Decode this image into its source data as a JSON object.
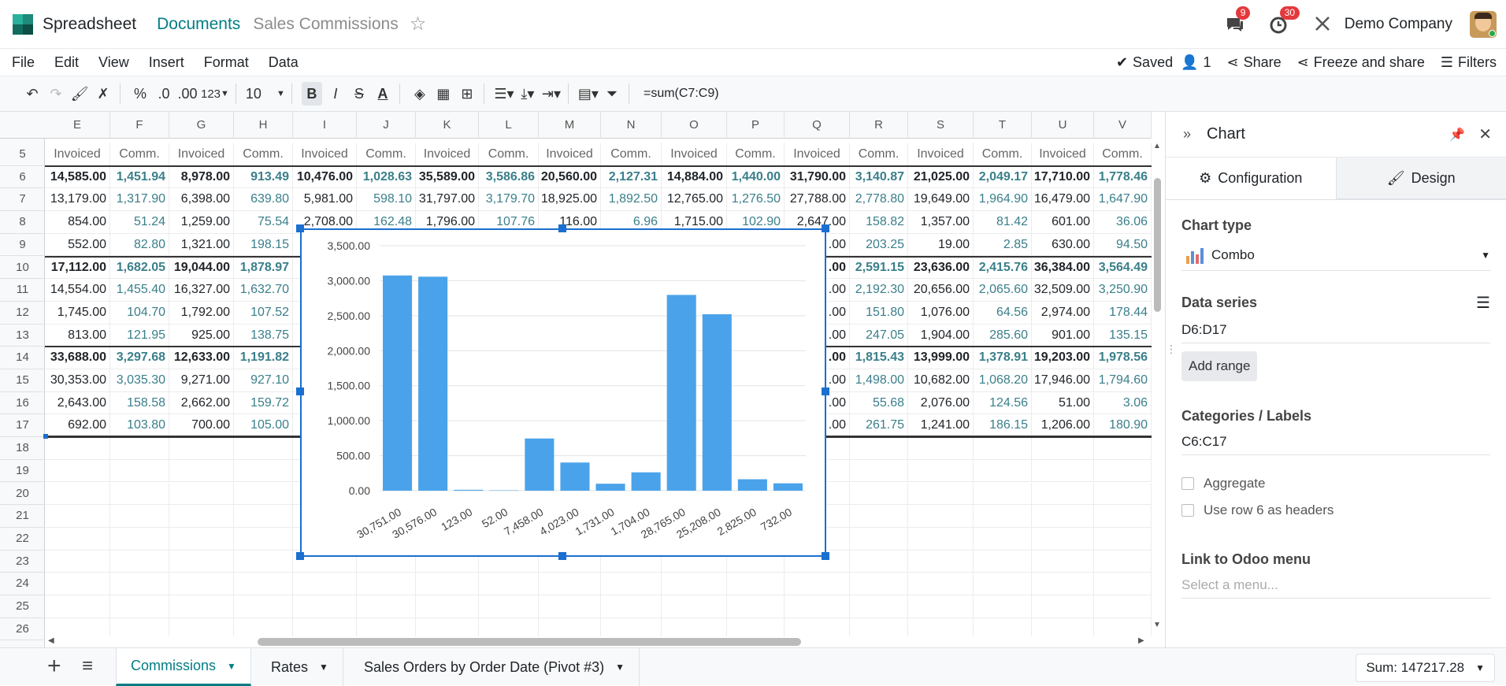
{
  "app": {
    "name": "Spreadsheet",
    "breadcrumb_link": "Documents",
    "breadcrumb_current": "Sales Commissions",
    "company": "Demo Company",
    "messages_count": "9",
    "activities_count": "30"
  },
  "menu": {
    "items": [
      "File",
      "Edit",
      "View",
      "Insert",
      "Format",
      "Data"
    ],
    "saved": "Saved",
    "users": "1",
    "share": "Share",
    "freeze": "Freeze and share",
    "filters": "Filters"
  },
  "toolbar": {
    "percent": "%",
    "dec_minus": ".0",
    "dec_plus": ".00",
    "format": "123",
    "font_size": "10",
    "formula": "=sum(C7:C9)"
  },
  "columns": [
    "E",
    "F",
    "G",
    "H",
    "I",
    "J",
    "K",
    "L",
    "M",
    "N",
    "O",
    "P",
    "Q",
    "R",
    "S",
    "T",
    "U",
    "V"
  ],
  "rows": [
    "5",
    "6",
    "7",
    "8",
    "9",
    "10",
    "11",
    "12",
    "13",
    "14",
    "15",
    "16",
    "17",
    "18",
    "19",
    "20",
    "21",
    "22",
    "23",
    "24",
    "25",
    "26"
  ],
  "header_row": [
    "Invoiced",
    "Comm.",
    "Invoiced",
    "Comm.",
    "Invoiced",
    "Comm.",
    "Invoiced",
    "Comm.",
    "Invoiced",
    "Comm.",
    "Invoiced",
    "Comm.",
    "Invoiced",
    "Comm.",
    "Invoiced",
    "Comm.",
    "Invoiced",
    "Comm."
  ],
  "data_rows": [
    [
      "14,585.00",
      "1,451.94",
      "8,978.00",
      "913.49",
      "10,476.00",
      "1,028.63",
      "35,589.00",
      "3,586.86",
      "20,560.00",
      "2,127.31",
      "14,884.00",
      "1,440.00",
      "31,790.00",
      "3,140.87",
      "21,025.00",
      "2,049.17",
      "17,710.00",
      "1,778.46"
    ],
    [
      "13,179.00",
      "1,317.90",
      "6,398.00",
      "639.80",
      "5,981.00",
      "598.10",
      "31,797.00",
      "3,179.70",
      "18,925.00",
      "1,892.50",
      "12,765.00",
      "1,276.50",
      "27,788.00",
      "2,778.80",
      "19,649.00",
      "1,964.90",
      "16,479.00",
      "1,647.90"
    ],
    [
      "854.00",
      "51.24",
      "1,259.00",
      "75.54",
      "2,708.00",
      "162.48",
      "1,796.00",
      "107.76",
      "116.00",
      "6.96",
      "1,715.00",
      "102.90",
      "2,647.00",
      "158.82",
      "1,357.00",
      "81.42",
      "601.00",
      "36.06"
    ],
    [
      "552.00",
      "82.80",
      "1,321.00",
      "198.15",
      "",
      "",
      "",
      "",
      "",
      "",
      "",
      "",
      "",
      "203.25",
      "19.00",
      "2.85",
      "630.00",
      "94.50"
    ],
    [
      "17,112.00",
      "1,682.05",
      "19,044.00",
      "1,878.97",
      "",
      "",
      "",
      "",
      "",
      "",
      "",
      "",
      "",
      "2,591.15",
      "23,636.00",
      "2,415.76",
      "36,384.00",
      "3,564.49"
    ],
    [
      "14,554.00",
      "1,455.40",
      "16,327.00",
      "1,632.70",
      "",
      "",
      "",
      "",
      "",
      "",
      "",
      "",
      "",
      "2,192.30",
      "20,656.00",
      "2,065.60",
      "32,509.00",
      "3,250.90"
    ],
    [
      "1,745.00",
      "104.70",
      "1,792.00",
      "107.52",
      "",
      "",
      "",
      "",
      "",
      "",
      "",
      "",
      "",
      "151.80",
      "1,076.00",
      "64.56",
      "2,974.00",
      "178.44"
    ],
    [
      "813.00",
      "121.95",
      "925.00",
      "138.75",
      "",
      "",
      "",
      "",
      "",
      "",
      "",
      "",
      "",
      "247.05",
      "1,904.00",
      "285.60",
      "901.00",
      "135.15"
    ],
    [
      "33,688.00",
      "3,297.68",
      "12,633.00",
      "1,191.82",
      "",
      "",
      "",
      "",
      "",
      "",
      "",
      "",
      "",
      "1,815.43",
      "13,999.00",
      "1,378.91",
      "19,203.00",
      "1,978.56"
    ],
    [
      "30,353.00",
      "3,035.30",
      "9,271.00",
      "927.10",
      "",
      "",
      "",
      "",
      "",
      "",
      "",
      "",
      "",
      "1,498.00",
      "10,682.00",
      "1,068.20",
      "17,946.00",
      "1,794.60"
    ],
    [
      "2,643.00",
      "158.58",
      "2,662.00",
      "159.72",
      "",
      "",
      "",
      "",
      "",
      "",
      "",
      "",
      "",
      "55.68",
      "2,076.00",
      "124.56",
      "51.00",
      "3.06"
    ],
    [
      "692.00",
      "103.80",
      "700.00",
      "105.00",
      "",
      "",
      "",
      "",
      "",
      "",
      "",
      "",
      "",
      "261.75",
      "1,241.00",
      "186.15",
      "1,206.00",
      "180.90"
    ]
  ],
  "q_partial": [
    ".00",
    ".00",
    ".00",
    ".00",
    ".00",
    ".00",
    ".00",
    ".00",
    ".00"
  ],
  "chart_data": {
    "type": "bar",
    "categories": [
      "30,751.00",
      "30,576.00",
      "123.00",
      "52.00",
      "7,458.00",
      "4,023.00",
      "1,731.00",
      "1,704.00",
      "28,765.00",
      "25,208.00",
      "2,825.00",
      "732.00"
    ],
    "values": [
      3075.1,
      3057.6,
      12.3,
      5.2,
      745.8,
      402.3,
      99.5,
      262,
      2797.2,
      2520.8,
      163,
      105
    ],
    "yticks": [
      "0.00",
      "500.00",
      "1,000.00",
      "1,500.00",
      "2,000.00",
      "2,500.00",
      "3,000.00",
      "3,500.00"
    ],
    "ylim": [
      0,
      3500
    ],
    "bar_color": "#4aa3ea"
  },
  "panel": {
    "title": "Chart",
    "tab_config": "Configuration",
    "tab_design": "Design",
    "chart_type_label": "Chart type",
    "chart_type_value": "Combo",
    "data_series_label": "Data series",
    "data_series_value": "D6:D17",
    "add_range": "Add range",
    "categories_label": "Categories / Labels",
    "categories_value": "C6:C17",
    "aggregate": "Aggregate",
    "use_headers": "Use row 6 as headers",
    "link_label": "Link to Odoo menu",
    "link_placeholder": "Select a menu..."
  },
  "sheets": [
    "Commissions",
    "Rates",
    "Sales Orders by Order Date (Pivot #3)"
  ],
  "sum": "Sum: 147217.28"
}
